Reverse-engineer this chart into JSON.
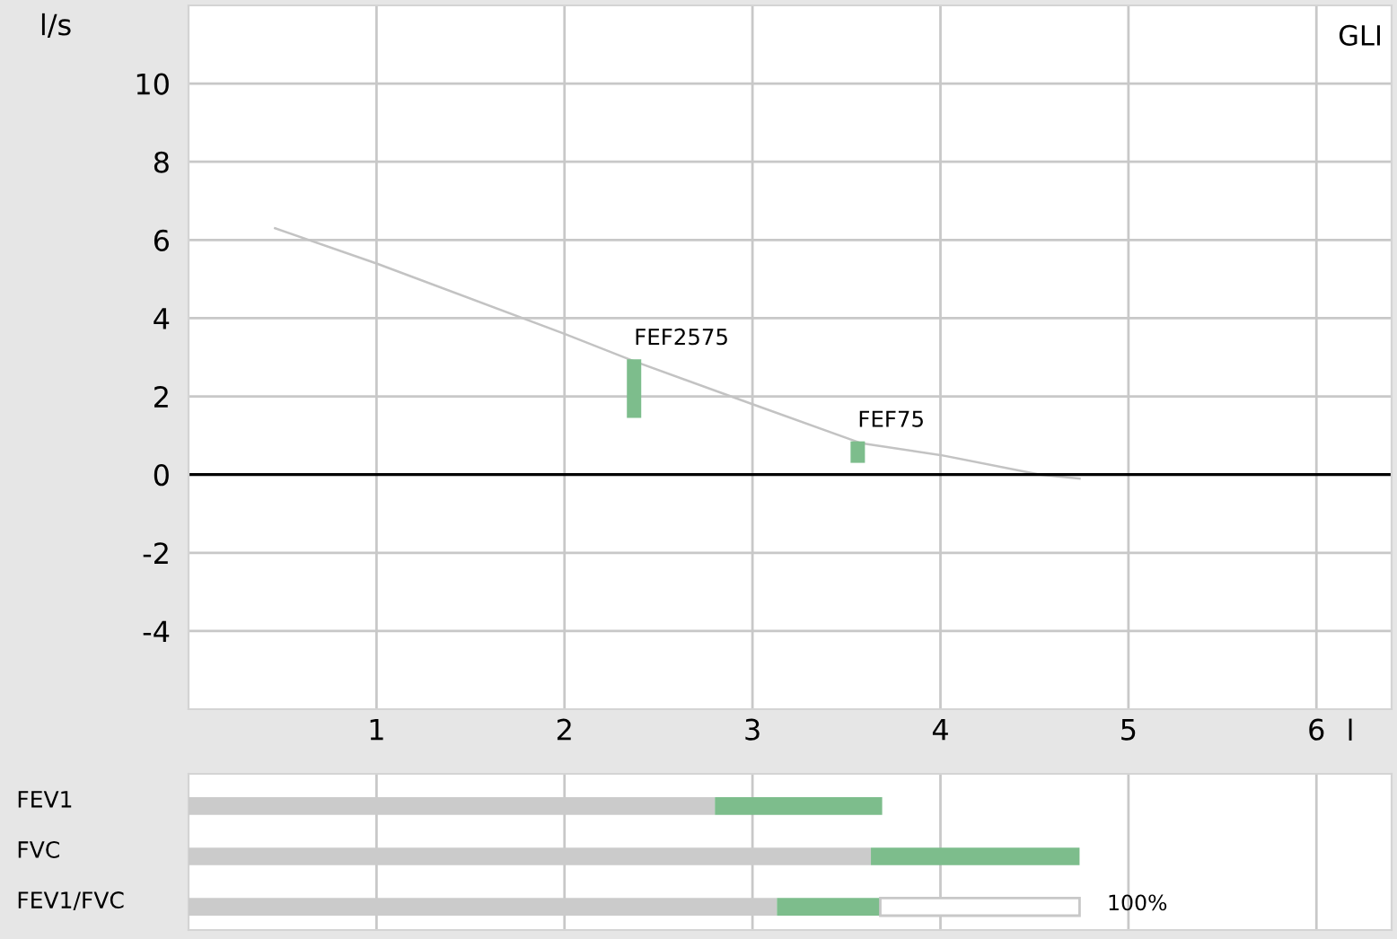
{
  "chart_data": [
    {
      "type": "line",
      "xlabel": "l",
      "ylabel": "l/s",
      "annotations": [
        "GLI",
        {
          "text": "FEF2575",
          "x": 2.37,
          "y": 2.95
        },
        {
          "text": "FEF75",
          "x": 3.56,
          "y": 0.85
        }
      ],
      "series": [
        {
          "type": "line",
          "color": "#c3c3c3",
          "x": [
            0.46,
            1,
            2,
            2.37,
            3,
            3.58,
            4,
            4.53,
            4.74
          ],
          "values": [
            6.3,
            5.4,
            3.6,
            2.9,
            1.8,
            0.8,
            0.5,
            0.0,
            -0.1
          ]
        },
        {
          "type": "bar",
          "color": "#7dbd8c",
          "x": [
            2.37,
            3.56
          ],
          "base": [
            1.45,
            0.3
          ],
          "values": [
            1.5,
            0.55
          ]
        }
      ],
      "xlim": [
        0,
        6.4
      ],
      "xticks": [
        1,
        2,
        3,
        4,
        5,
        6
      ],
      "ylim": [
        -6,
        12
      ],
      "yticks": [
        -4,
        -2,
        0,
        2,
        4,
        6,
        8,
        10
      ],
      "grid": true,
      "ref_lines": [
        {
          "axis": "y",
          "value": 0,
          "color": "#000000"
        }
      ]
    },
    {
      "type": "bar",
      "orientation": "horizontal",
      "stacked": true,
      "categories": [
        "FEV1",
        "FVC",
        "FEV1/FVC"
      ],
      "series": [
        {
          "color": "#cbcbcb",
          "values": [
            2.8,
            3.63,
            3.13
          ]
        },
        {
          "color": "#7dbd8c",
          "values": [
            0.89,
            1.11,
            0.55
          ]
        },
        {
          "color": "#ffffff",
          "values": [
            null,
            null,
            1.06
          ]
        }
      ],
      "annotations": [
        {
          "text": "100%",
          "x": 4.74,
          "y": "FEV1/FVC"
        }
      ],
      "xlim": [
        0,
        6.4
      ],
      "xticks": [
        1,
        2,
        3,
        4,
        5,
        6
      ],
      "tick_labels": "y",
      "grid": "x"
    }
  ]
}
